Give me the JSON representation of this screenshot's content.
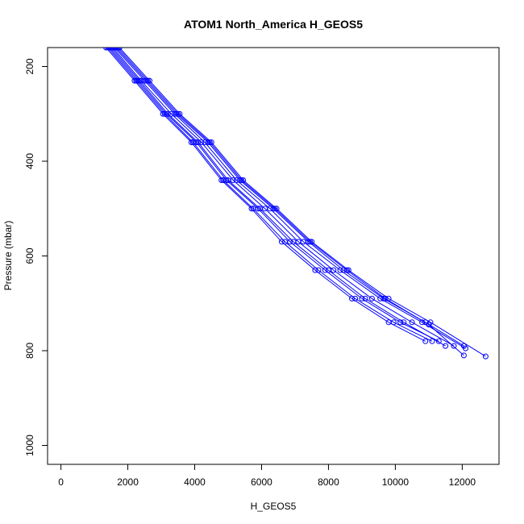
{
  "chart_data": {
    "type": "line",
    "title": "ATOM1 North_America H_GEOS5",
    "xlabel": "H_GEOS5",
    "ylabel": "Pressure (mbar)",
    "xlim": [
      -400,
      13100
    ],
    "ylim": [
      1040,
      160
    ],
    "y_inverted": true,
    "x_ticks": [
      0,
      2000,
      4000,
      6000,
      8000,
      10000,
      12000
    ],
    "y_ticks": [
      200,
      400,
      600,
      800,
      1000
    ],
    "grid": false,
    "legend": "none",
    "color": "#0000ff",
    "marker": "open-circle",
    "series": [
      {
        "values": [
          [
            1350,
            160
          ],
          [
            2200,
            230
          ],
          [
            3050,
            300
          ],
          [
            3900,
            360
          ],
          [
            4800,
            440
          ],
          [
            5700,
            500
          ],
          [
            6600,
            570
          ],
          [
            7600,
            630
          ],
          [
            8700,
            690
          ],
          [
            9800,
            740
          ],
          [
            10900,
            780
          ]
        ]
      },
      {
        "values": [
          [
            1450,
            160
          ],
          [
            2300,
            230
          ],
          [
            3150,
            300
          ],
          [
            4050,
            360
          ],
          [
            4950,
            440
          ],
          [
            5900,
            500
          ],
          [
            6850,
            570
          ],
          [
            7900,
            630
          ],
          [
            9000,
            690
          ],
          [
            10150,
            740
          ],
          [
            11300,
            780
          ]
        ]
      },
      {
        "values": [
          [
            1550,
            160
          ],
          [
            2400,
            230
          ],
          [
            3300,
            300
          ],
          [
            4200,
            360
          ],
          [
            5150,
            440
          ],
          [
            6100,
            500
          ],
          [
            7100,
            570
          ],
          [
            8150,
            630
          ],
          [
            9300,
            690
          ],
          [
            10500,
            740
          ],
          [
            11750,
            790
          ]
        ]
      },
      {
        "values": [
          [
            1600,
            160
          ],
          [
            2500,
            230
          ],
          [
            3400,
            300
          ],
          [
            4300,
            360
          ],
          [
            5250,
            440
          ],
          [
            6250,
            500
          ],
          [
            7250,
            570
          ],
          [
            8350,
            630
          ],
          [
            9550,
            690
          ],
          [
            10800,
            740
          ],
          [
            12100,
            795
          ]
        ]
      },
      {
        "values": [
          [
            1750,
            160
          ],
          [
            2650,
            230
          ],
          [
            3550,
            300
          ],
          [
            4500,
            360
          ],
          [
            5450,
            440
          ],
          [
            6450,
            500
          ],
          [
            7500,
            570
          ],
          [
            8600,
            630
          ],
          [
            9800,
            690
          ],
          [
            11050,
            740
          ],
          [
            12700,
            812
          ]
        ]
      },
      {
        "values": [
          [
            1400,
            160
          ],
          [
            2250,
            230
          ],
          [
            3100,
            300
          ],
          [
            3950,
            360
          ],
          [
            4850,
            440
          ],
          [
            5750,
            500
          ],
          [
            6700,
            570
          ],
          [
            7700,
            630
          ],
          [
            8800,
            690
          ],
          [
            9950,
            740
          ],
          [
            11100,
            780
          ]
        ]
      },
      {
        "values": [
          [
            1500,
            160
          ],
          [
            2350,
            230
          ],
          [
            3200,
            300
          ],
          [
            4100,
            360
          ],
          [
            5000,
            440
          ],
          [
            5950,
            500
          ],
          [
            6950,
            570
          ],
          [
            8000,
            630
          ],
          [
            9100,
            690
          ],
          [
            10250,
            740
          ],
          [
            11500,
            790
          ]
        ]
      },
      {
        "values": [
          [
            1650,
            160
          ],
          [
            2550,
            230
          ],
          [
            3450,
            300
          ],
          [
            4400,
            360
          ],
          [
            5350,
            440
          ],
          [
            6350,
            500
          ],
          [
            7400,
            570
          ],
          [
            8450,
            630
          ],
          [
            9650,
            690
          ],
          [
            10900,
            740
          ],
          [
            12050,
            790
          ]
        ]
      },
      {
        "values": [
          [
            1700,
            160
          ],
          [
            2600,
            230
          ],
          [
            3500,
            300
          ],
          [
            4450,
            360
          ],
          [
            5400,
            440
          ],
          [
            6400,
            500
          ],
          [
            7450,
            570
          ],
          [
            8550,
            630
          ],
          [
            9700,
            690
          ],
          [
            11000,
            745
          ],
          [
            12050,
            810
          ]
        ]
      }
    ]
  }
}
